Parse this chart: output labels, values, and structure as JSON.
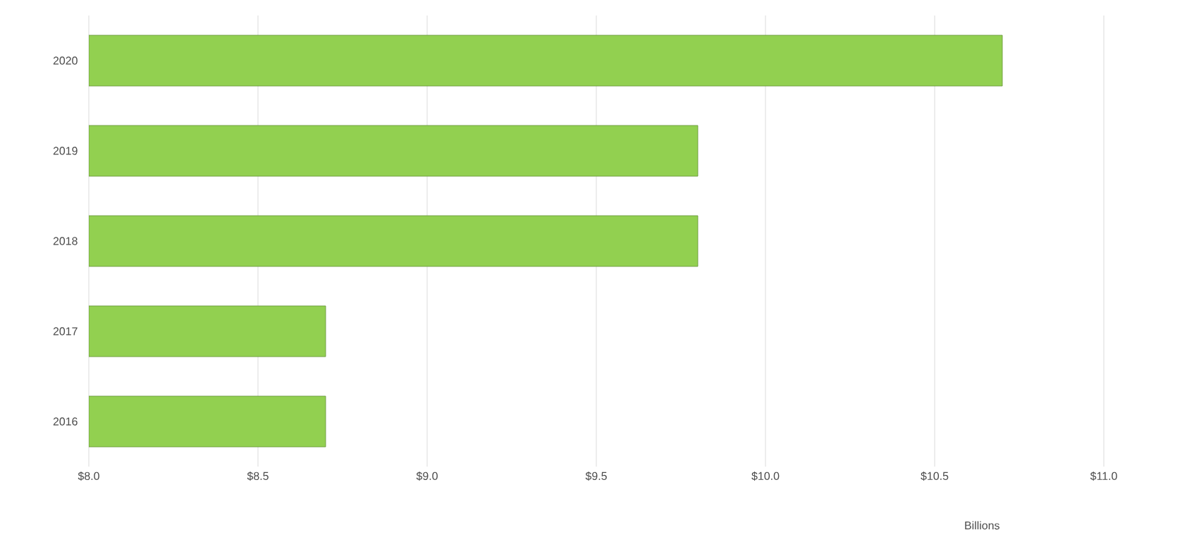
{
  "chart_data": {
    "type": "bar",
    "orientation": "horizontal",
    "categories": [
      "2020",
      "2019",
      "2018",
      "2017",
      "2016"
    ],
    "values": [
      10.7,
      9.8,
      9.8,
      8.7,
      8.7
    ],
    "color": "#92d050",
    "xlabel": "Billions",
    "xlim": [
      8,
      11
    ],
    "xticks": [
      {
        "value": 8,
        "label": "$8.0"
      },
      {
        "value": 8.5,
        "label": "$8.5"
      },
      {
        "value": 9,
        "label": "$9.0"
      },
      {
        "value": 9.5,
        "label": "$9.5"
      },
      {
        "value": 10,
        "label": "$10.0"
      },
      {
        "value": 10.5,
        "label": "$10.5"
      },
      {
        "value": 11,
        "label": "$11.0"
      }
    ],
    "grid": "x"
  }
}
